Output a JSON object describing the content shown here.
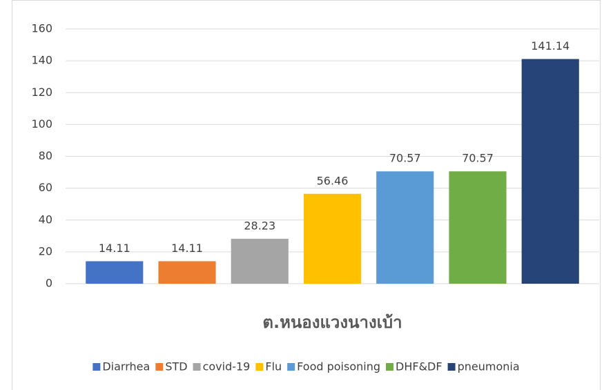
{
  "chart_data": {
    "type": "bar",
    "categories": [
      "ต.หนองแวงนางเบ้า"
    ],
    "series": [
      {
        "name": "Diarrhea",
        "color": "#4472c4",
        "values": [
          14.11
        ]
      },
      {
        "name": "STD",
        "color": "#ed7d31",
        "values": [
          14.11
        ]
      },
      {
        "name": "covid-19",
        "color": "#a5a5a5",
        "values": [
          28.23
        ]
      },
      {
        "name": "Flu",
        "color": "#ffc000",
        "values": [
          56.46
        ]
      },
      {
        "name": "Food poisoning",
        "color": "#5b9bd5",
        "values": [
          70.57
        ]
      },
      {
        "name": "DHF&DF",
        "color": "#70ad47",
        "values": [
          70.57
        ]
      },
      {
        "name": "pneumonia",
        "color": "#264478",
        "values": [
          141.14
        ]
      }
    ],
    "ylim": [
      0,
      160
    ],
    "yticks": [
      0,
      20,
      40,
      60,
      80,
      100,
      120,
      140,
      160
    ],
    "grid": true,
    "legend": "bottom",
    "data_labels": true
  }
}
